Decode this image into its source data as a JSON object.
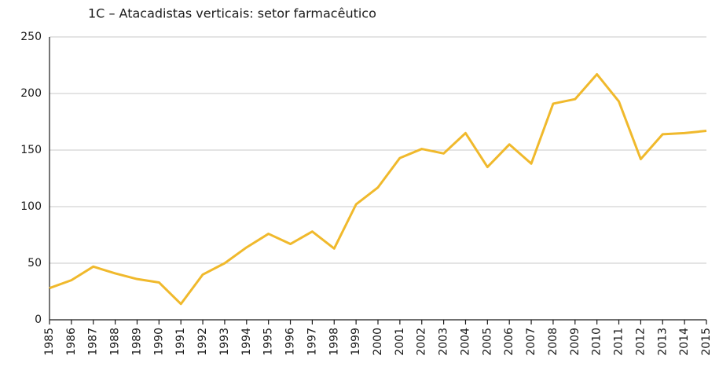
{
  "chart_data": {
    "type": "line",
    "title": "1C – Atacadistas verticais: setor farmacêutico",
    "x": [
      1985,
      1986,
      1987,
      1988,
      1989,
      1990,
      1991,
      1992,
      1993,
      1994,
      1995,
      1996,
      1997,
      1998,
      1999,
      2000,
      2001,
      2002,
      2003,
      2004,
      2005,
      2006,
      2007,
      2008,
      2009,
      2010,
      2011,
      2012,
      2013,
      2014,
      2015
    ],
    "series": [
      {
        "color": "#f0b92c",
        "values": [
          28,
          35,
          47,
          41,
          36,
          33,
          14,
          40,
          50,
          64,
          76,
          67,
          78,
          63,
          102,
          117,
          143,
          151,
          147,
          165,
          135,
          155,
          138,
          191,
          195,
          217,
          193,
          142,
          164,
          165,
          167
        ]
      }
    ],
    "xlim": [
      1985,
      2015
    ],
    "xticks": [
      1985,
      1986,
      1987,
      1988,
      1989,
      1990,
      1991,
      1992,
      1993,
      1994,
      1995,
      1996,
      1997,
      1998,
      1999,
      2000,
      2001,
      2002,
      2003,
      2004,
      2005,
      2006,
      2007,
      2008,
      2009,
      2010,
      2011,
      2012,
      2013,
      2014,
      2015
    ],
    "ylim": [
      0,
      250
    ],
    "yticks": [
      0,
      50,
      100,
      150,
      200,
      250
    ],
    "grid": true
  }
}
